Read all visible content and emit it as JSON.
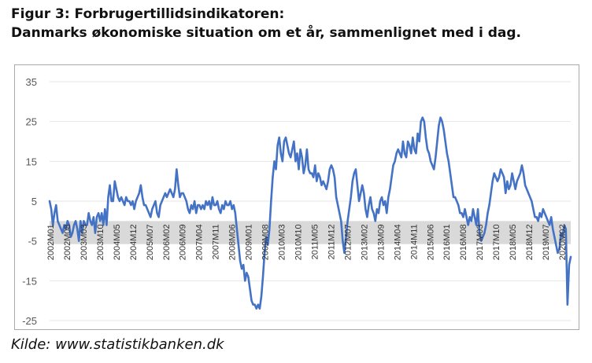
{
  "title_line1": "Figur 3: Forbrugertillidsindikatoren:",
  "title_line2": "Danmarks økonomiske situation om et år, sammenlignet med i dag.",
  "source": "Kilde: www.statistikbanken.dk",
  "colors": {
    "line": "#4472c4",
    "plot_band": "#d9d9d9",
    "gridline": "#e6e6e6",
    "tick_text": "#595959"
  },
  "chart_data": {
    "type": "line",
    "title": "Figur 3: Forbrugertillidsindikatoren: Danmarks økonomiske situation om et år, sammenlignet med i dag.",
    "xlabel": "",
    "ylabel": "",
    "ylim": [
      -25,
      35
    ],
    "yticks": [
      35,
      25,
      15,
      5,
      -5,
      -15,
      -25
    ],
    "gridlines": true,
    "x_start": "2002M01",
    "x_end": "2020M06",
    "xtick_labels": [
      "2002M01",
      "2002M08",
      "2003M03",
      "2003M10",
      "2004M05",
      "2004M12",
      "2005M07",
      "2006M02",
      "2006M09",
      "2007M04",
      "2007M11",
      "2008M06",
      "2009M01",
      "2009M08",
      "2010M03",
      "2010M10",
      "2011M05",
      "2011M12",
      "2012M07",
      "2013M02",
      "2013M09",
      "2014M04",
      "2014M11",
      "2015M06",
      "2016M01",
      "2016M08",
      "2017M03",
      "2017M10",
      "2018M05",
      "2018M12",
      "2019M07",
      "2020M02"
    ],
    "series": [
      {
        "values": [
          5,
          3,
          -1,
          2,
          4,
          0,
          -1,
          -2,
          -3,
          -1,
          -2,
          0,
          -1,
          -4,
          -3,
          -1,
          0,
          -2,
          -5,
          0,
          -3,
          0,
          -1,
          -1,
          2,
          0,
          -1,
          1,
          -3,
          1,
          2,
          0,
          2,
          -1,
          3,
          -1,
          6,
          9,
          5,
          5,
          10,
          8,
          6,
          5,
          6,
          5,
          4,
          6,
          5,
          5,
          4,
          5,
          3,
          5,
          6,
          7,
          9,
          6,
          4,
          4,
          3,
          2,
          1,
          3,
          4,
          5,
          2,
          1,
          4,
          5,
          6,
          7,
          6,
          7,
          8,
          7,
          6,
          8,
          13,
          9,
          6,
          7,
          7,
          6,
          5,
          3,
          2,
          4,
          3,
          5,
          2,
          4,
          4,
          3,
          4,
          3,
          5,
          4,
          5,
          3,
          6,
          4,
          4,
          5,
          3,
          2,
          4,
          3,
          5,
          4,
          4,
          5,
          3,
          4,
          2,
          -2,
          -6,
          -10,
          -12,
          -11,
          -15,
          -13,
          -14,
          -17,
          -20,
          -21,
          -21,
          -22,
          -21,
          -22,
          -19,
          -14,
          -8,
          -4,
          -6,
          -2,
          5,
          11,
          15,
          13,
          19,
          21,
          17,
          15,
          20,
          21,
          19,
          17,
          16,
          18,
          20,
          15,
          17,
          13,
          18,
          16,
          12,
          14,
          18,
          13,
          12,
          12,
          11,
          14,
          10,
          12,
          11,
          9,
          10,
          9,
          8,
          10,
          13,
          14,
          13,
          11,
          6,
          4,
          2,
          0,
          -5,
          -8,
          -4,
          0,
          3,
          6,
          10,
          12,
          13,
          9,
          5,
          7,
          9,
          7,
          3,
          1,
          4,
          6,
          3,
          2,
          0,
          3,
          2,
          5,
          6,
          4,
          5,
          2,
          6,
          8,
          11,
          14,
          15,
          17,
          18,
          17,
          16,
          20,
          17,
          16,
          20,
          19,
          17,
          21,
          18,
          17,
          22,
          20,
          25,
          26,
          25,
          21,
          18,
          17,
          15,
          14,
          13,
          16,
          20,
          24,
          26,
          25,
          23,
          20,
          17,
          15,
          12,
          9,
          6,
          6,
          5,
          4,
          2,
          2,
          1,
          3,
          1,
          -1,
          1,
          0,
          3,
          1,
          -1,
          3,
          -3,
          -5,
          -4,
          -3,
          -1,
          2,
          4,
          7,
          10,
          12,
          11,
          10,
          11,
          13,
          12,
          11,
          7,
          10,
          8,
          9,
          12,
          10,
          8,
          10,
          11,
          12,
          14,
          12,
          9,
          8,
          7,
          6,
          5,
          3,
          1,
          1,
          0,
          2,
          1,
          3,
          2,
          1,
          0,
          -1,
          1,
          -2,
          -4,
          -6,
          -8,
          -7,
          -3,
          -4,
          -1,
          -2,
          -21,
          -11,
          -9
        ]
      }
    ]
  }
}
